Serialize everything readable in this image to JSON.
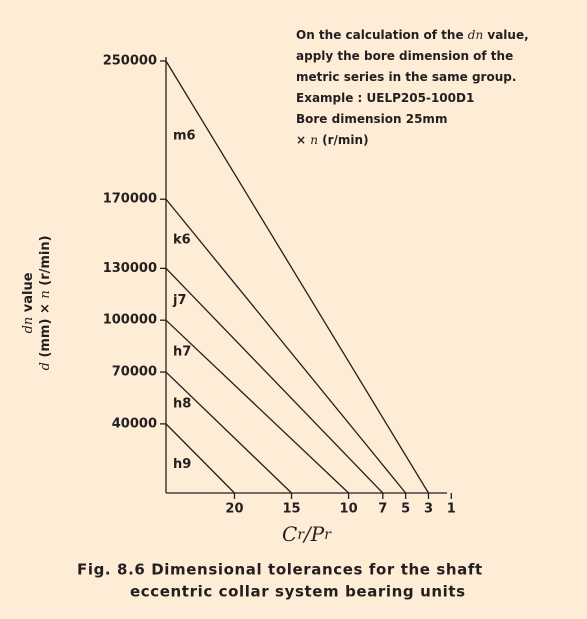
{
  "chart_data": {
    "type": "tolerance-lines",
    "xlim": [
      26,
      0.5
    ],
    "ylim": [
      0,
      250000
    ],
    "xticks": [
      20,
      15,
      10,
      7,
      5,
      3,
      1
    ],
    "yticks": [
      40000,
      70000,
      100000,
      130000,
      170000,
      250000
    ],
    "x_label": [
      {
        "math": "C"
      },
      {
        "math": "r"
      },
      {
        "math": "/P"
      },
      {
        "math": "r"
      }
    ],
    "y_label": [
      [
        {
          "math": "dn"
        },
        " value"
      ],
      [
        {
          "math": "d"
        },
        " (mm) × ",
        {
          "math": "n"
        },
        " (r/min)"
      ]
    ],
    "color": "#231f20",
    "series": [
      {
        "name": "m6",
        "y_intercept": 250000,
        "x_intercept": 3
      },
      {
        "name": "k6",
        "y_intercept": 170000,
        "x_intercept": 5
      },
      {
        "name": "j7",
        "y_intercept": 130000,
        "x_intercept": 7
      },
      {
        "name": "h7",
        "y_intercept": 100000,
        "x_intercept": 10
      },
      {
        "name": "h8",
        "y_intercept": 70000,
        "x_intercept": 15
      },
      {
        "name": "h9",
        "y_intercept": 40000,
        "x_intercept": 20
      }
    ],
    "annotation": [
      [
        "On the calculation of the ",
        {
          "math": "dn"
        },
        " value,"
      ],
      [
        "apply the bore dimension of the"
      ],
      [
        "metric series in the same group."
      ],
      [
        "Example : UELP205-100D1"
      ],
      [
        "Bore dimension 25mm"
      ],
      [
        "× ",
        {
          "math": "n"
        },
        " (r/min)"
      ]
    ],
    "caption": [
      "Fig. 8.6 Dimensional tolerances for the shaft",
      "eccentric collar system bearing units"
    ]
  }
}
